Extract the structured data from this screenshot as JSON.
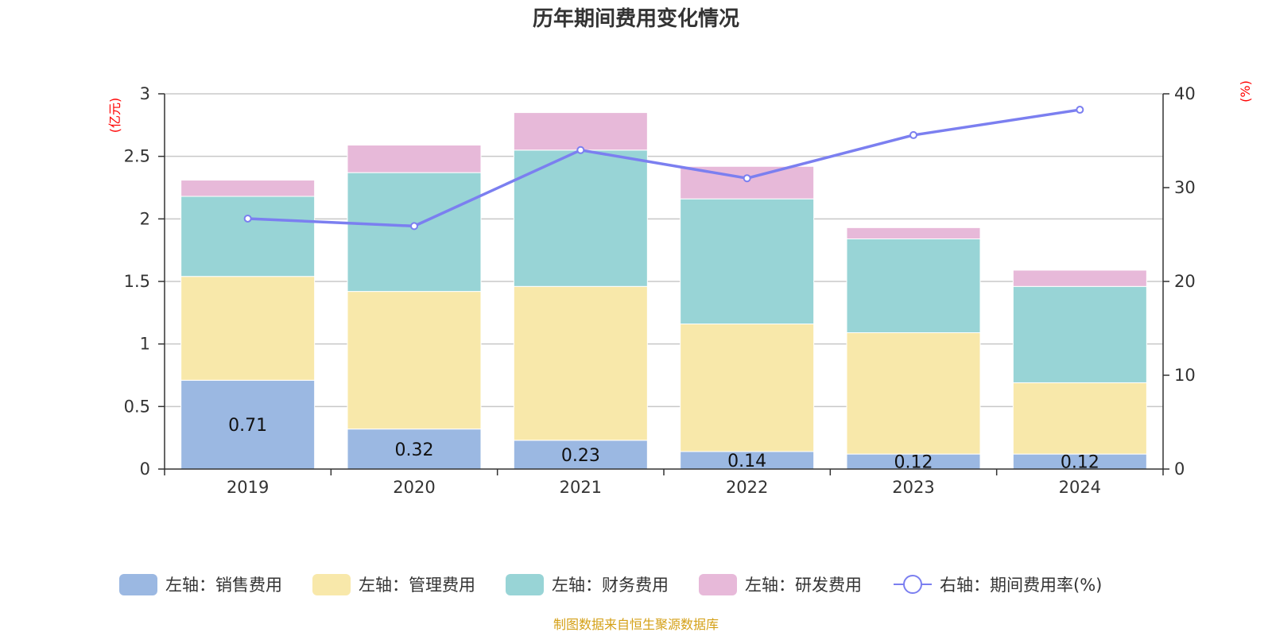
{
  "chart_data": {
    "type": "bar",
    "title": "历年期间费用变化情况",
    "categories": [
      "2019",
      "2020",
      "2021",
      "2022",
      "2023",
      "2024"
    ],
    "left_axis": {
      "unit": "(亿元)",
      "ylim": [
        0,
        3
      ],
      "ticks": [
        "0",
        "0.5",
        "1",
        "1.5",
        "2",
        "2.5",
        "3"
      ],
      "tick_values": [
        0,
        0.5,
        1,
        1.5,
        2,
        2.5,
        3
      ]
    },
    "right_axis": {
      "unit": "(%)",
      "ylim": [
        0,
        40
      ],
      "ticks": [
        "0",
        "10",
        "20",
        "30",
        "40"
      ],
      "tick_values": [
        0,
        10,
        20,
        30,
        40
      ]
    },
    "series": [
      {
        "name": "左轴：销售费用",
        "type": "bar",
        "stack": true,
        "axis": "left",
        "color": "#9bb8e2",
        "values": [
          0.71,
          0.32,
          0.23,
          0.14,
          0.12,
          0.12
        ],
        "labels": [
          "0.71",
          "0.32",
          "0.23",
          "0.14",
          "0.12",
          "0.12"
        ]
      },
      {
        "name": "左轴：管理费用",
        "type": "bar",
        "stack": true,
        "axis": "left",
        "color": "#f8e8aa",
        "values": [
          0.83,
          1.1,
          1.23,
          1.02,
          0.97,
          0.57
        ]
      },
      {
        "name": "左轴：财务费用",
        "type": "bar",
        "stack": true,
        "axis": "left",
        "color": "#98d4d6",
        "values": [
          0.64,
          0.95,
          1.09,
          1.0,
          0.75,
          0.77
        ]
      },
      {
        "name": "左轴：研发费用",
        "type": "bar",
        "stack": true,
        "axis": "left",
        "color": "#e7b9d9",
        "values": [
          0.13,
          0.22,
          0.3,
          0.26,
          0.09,
          0.13
        ]
      },
      {
        "name": "右轴：期间费用率(%)",
        "type": "line",
        "axis": "right",
        "color": "#7b7ff0",
        "values": [
          26.7,
          25.9,
          34.0,
          31.0,
          35.6,
          38.3
        ]
      }
    ],
    "legend_position": "bottom",
    "grid": true
  },
  "source_note": "制图数据来自恒生聚源数据库"
}
